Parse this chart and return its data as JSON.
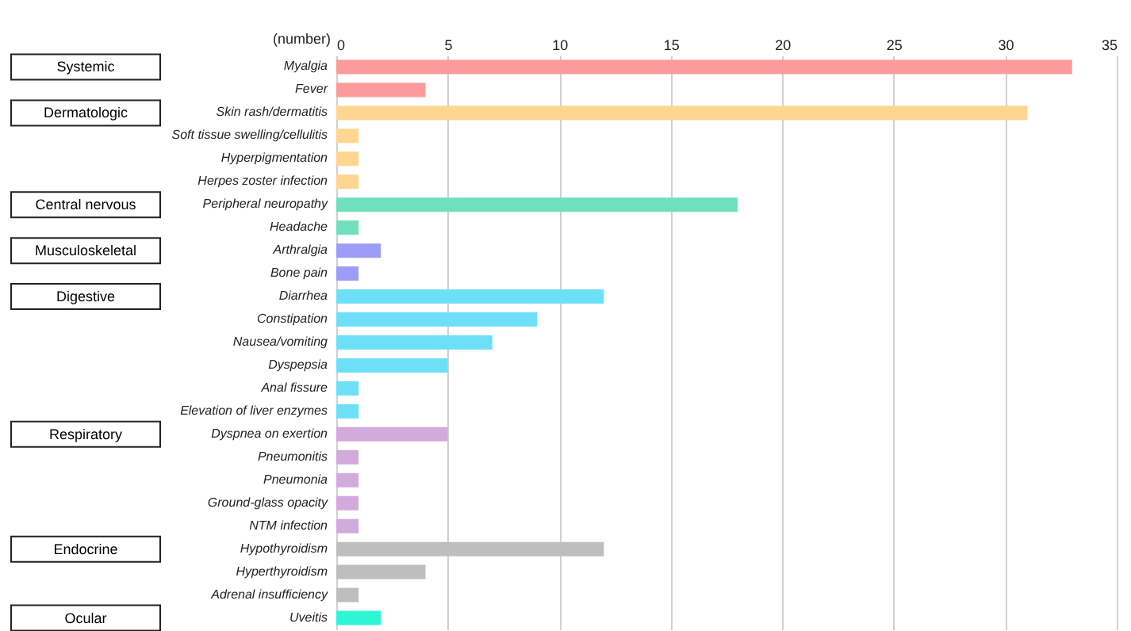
{
  "chart_data": {
    "type": "bar",
    "orientation": "horizontal",
    "stacked": true,
    "xlabel": "(number)",
    "categories": [
      "Myalgia",
      "Fever",
      "Skin rash/dermatitis",
      "Soft tissue swelling/cellulitis",
      "Hyperpigmentation",
      "Herpes zoster infection",
      "Peripheral neuropathy",
      "Headache",
      "Arthralgia",
      "Bone pain",
      "Diarrhea",
      "Constipation",
      "Nausea/vomiting",
      "Dyspepsia",
      "Anal fissure",
      "Elevation of liver enzymes",
      "Dyspnea on exertion",
      "Pneumonitis",
      "Pneumonia",
      "Ground-glass opacity",
      "NTM infection",
      "Hypothyroidism",
      "Hyperthyroidism",
      "Adrenal insufficiency",
      "Uveitis"
    ],
    "series": [
      {
        "color": "#fd9b9b",
        "values": [
          33,
          4,
          null,
          null,
          null,
          null,
          null,
          null,
          null,
          null,
          null,
          null,
          null,
          null,
          null,
          null,
          null,
          null,
          null,
          null,
          null,
          null,
          null,
          null,
          null
        ]
      },
      {
        "color": "#fed591",
        "values": [
          null,
          null,
          31,
          1,
          1,
          1,
          null,
          null,
          null,
          null,
          null,
          null,
          null,
          null,
          null,
          null,
          null,
          null,
          null,
          null,
          null,
          null,
          null,
          null,
          null
        ]
      },
      {
        "color": "#6fe0bb",
        "values": [
          null,
          null,
          null,
          null,
          null,
          null,
          18,
          1,
          null,
          null,
          null,
          null,
          null,
          null,
          null,
          null,
          null,
          null,
          null,
          null,
          null,
          null,
          null,
          null,
          null
        ]
      },
      {
        "color": "#9d9df7",
        "values": [
          null,
          null,
          null,
          null,
          null,
          null,
          null,
          null,
          2,
          1,
          null,
          null,
          null,
          null,
          null,
          null,
          null,
          null,
          null,
          null,
          null,
          null,
          null,
          null,
          null
        ]
      },
      {
        "color": "#6de0f8",
        "values": [
          null,
          null,
          null,
          null,
          null,
          null,
          null,
          null,
          null,
          null,
          12,
          9,
          7,
          5,
          1,
          1,
          null,
          null,
          null,
          null,
          null,
          null,
          null,
          null,
          null
        ]
      },
      {
        "color": "#d3aadc",
        "values": [
          null,
          null,
          null,
          null,
          null,
          null,
          null,
          null,
          null,
          null,
          null,
          null,
          null,
          null,
          null,
          null,
          5,
          1,
          1,
          1,
          1,
          null,
          null,
          null,
          null
        ]
      },
      {
        "color": "#bebebe",
        "values": [
          null,
          null,
          null,
          null,
          null,
          null,
          null,
          null,
          null,
          null,
          null,
          null,
          null,
          null,
          null,
          null,
          null,
          null,
          null,
          null,
          null,
          12,
          4,
          1,
          null
        ]
      },
      {
        "color": "#2ff5d6",
        "values": [
          null,
          null,
          null,
          null,
          null,
          null,
          null,
          null,
          null,
          null,
          null,
          null,
          null,
          null,
          null,
          null,
          null,
          null,
          null,
          null,
          null,
          null,
          null,
          null,
          2
        ]
      }
    ],
    "annotations": [
      "Systemic",
      "Dermatologic",
      "Central nervous",
      "Musculoskeletal",
      "Digestive",
      "Respiratory",
      "Endocrine",
      "Ocular"
    ],
    "xlim": [
      0,
      35
    ],
    "xticks": [
      0,
      5,
      10,
      15,
      20,
      25,
      30,
      35
    ],
    "grid": "x",
    "legend": false
  }
}
